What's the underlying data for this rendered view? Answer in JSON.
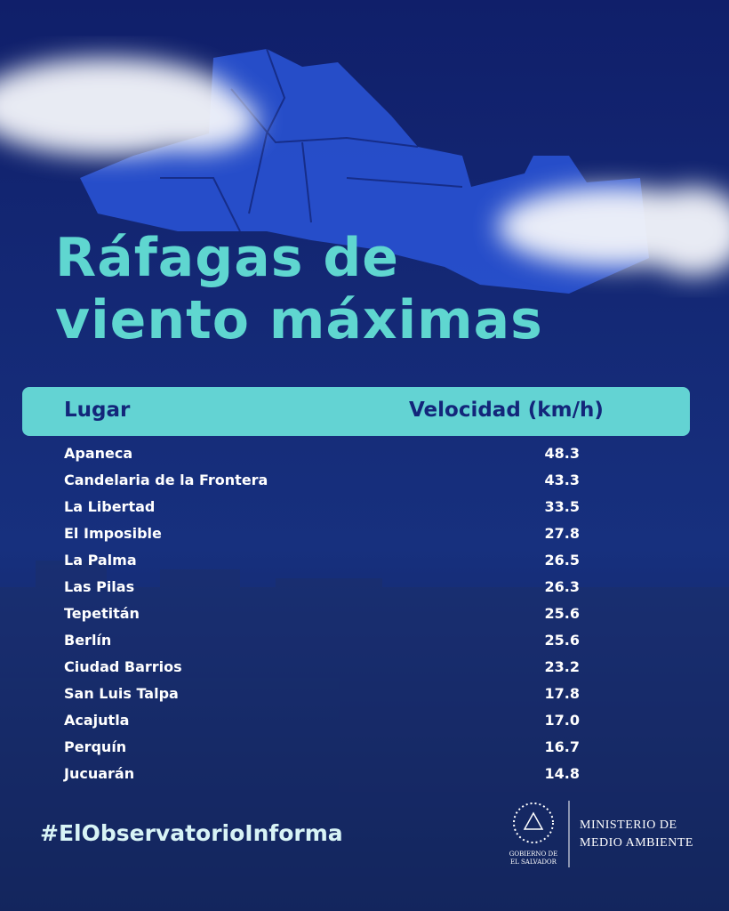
{
  "title": {
    "line1": "Ráfagas de",
    "line2": "viento máximas"
  },
  "table": {
    "header": [
      "Lugar",
      "Velocidad (km/h)"
    ],
    "rows": [
      [
        "Apaneca",
        "48.3"
      ],
      [
        "Candelaria de la Frontera",
        "43.3"
      ],
      [
        "La Libertad",
        "33.5"
      ],
      [
        "El Imposible",
        "27.8"
      ],
      [
        "La Palma",
        "26.5"
      ],
      [
        "Las Pilas",
        "26.3"
      ],
      [
        "Tepetitán",
        "25.6"
      ],
      [
        "Berlín",
        "25.6"
      ],
      [
        "Ciudad Barrios",
        "23.2"
      ],
      [
        "San Luis Talpa",
        "17.8"
      ],
      [
        "Acajutla",
        "17.0"
      ],
      [
        "Perquín",
        "16.7"
      ],
      [
        "Jucuarán",
        "14.8"
      ]
    ]
  },
  "footer": {
    "hashtag": "#ElObservatorioInforma",
    "government": [
      "GOBIERNO DE",
      "EL SALVADOR"
    ],
    "ministry": [
      "MINISTERIO DE",
      "MEDIO AMBIENTE"
    ]
  }
}
